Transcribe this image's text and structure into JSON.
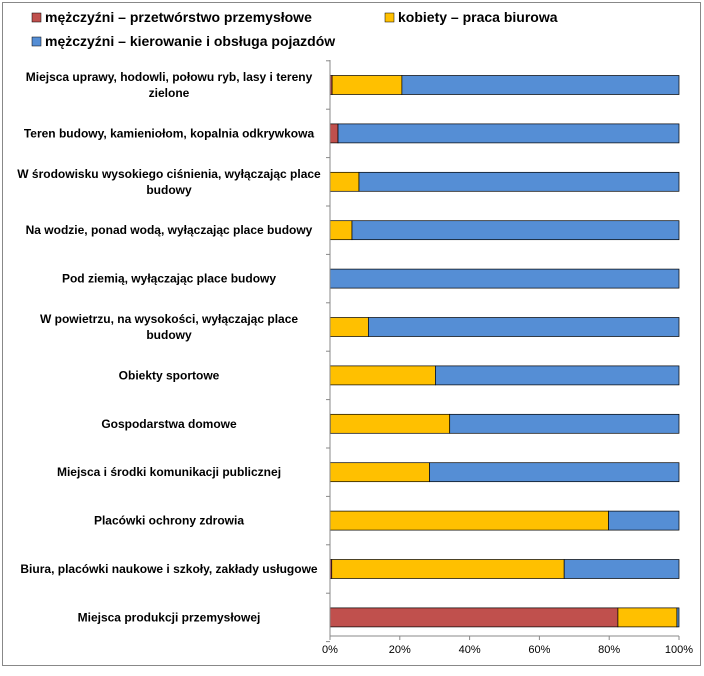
{
  "chart_data": {
    "type": "bar",
    "orientation": "horizontal",
    "stacked": "percent",
    "legend_position": "top",
    "grid": false,
    "xlim": [
      0,
      100
    ],
    "x_ticks": [
      "0%",
      "20%",
      "40%",
      "60%",
      "80%",
      "100%"
    ],
    "categories": [
      [
        "Miejsca uprawy, hodowli, połowu ryb, lasy i tereny",
        "zielone"
      ],
      [
        "Teren budowy, kamieniołom, kopalnia odkrywkowa"
      ],
      [
        "W środowisku wysokiego ciśnienia, wyłączając place",
        "budowy"
      ],
      [
        "Na wodzie, ponad wodą, wyłączając place budowy"
      ],
      [
        "Pod ziemią, wyłączając place budowy"
      ],
      [
        "W powietrzu, na wysokości, wyłączając place",
        "budowy"
      ],
      [
        "Obiekty sportowe"
      ],
      [
        "Gospodarstwa domowe"
      ],
      [
        "Miejsca i środki komunikacji publicznej"
      ],
      [
        "Placówki ochrony zdrowia"
      ],
      [
        "Biura, placówki naukowe i szkoły, zakłady usługowe"
      ],
      [
        "Miejsca produkcji przemysłowej"
      ]
    ],
    "series": [
      {
        "name": "mężczyźni – przetwórstwo przemysłowe",
        "color": "#C0504D",
        "values": [
          0.6,
          2.3,
          0,
          0,
          0,
          0,
          0,
          0.1,
          0,
          0,
          0.5,
          82.5
        ]
      },
      {
        "name": "kobiety – praca biurowa",
        "color": "#FFC000",
        "values": [
          20.0,
          0,
          8.3,
          6.3,
          0,
          11.0,
          30.2,
          34.2,
          28.5,
          79.8,
          66.6,
          16.9
        ]
      },
      {
        "name": "mężczyźni – kierowanie i obsługa pojazdów",
        "color": "#558ED5",
        "values": [
          79.4,
          97.7,
          91.7,
          93.7,
          100,
          89.0,
          69.8,
          65.7,
          71.5,
          20.2,
          32.9,
          0.6
        ]
      }
    ]
  }
}
